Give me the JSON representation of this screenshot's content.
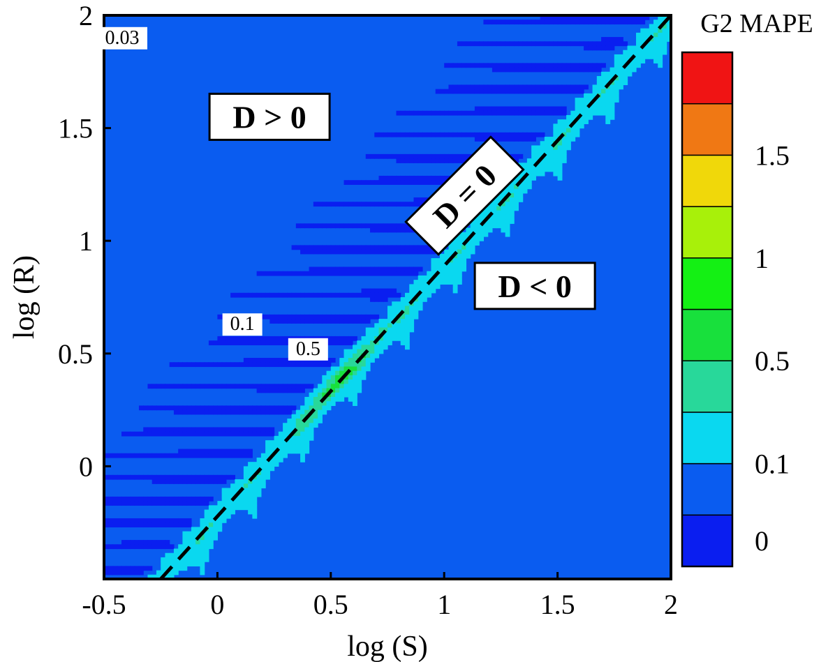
{
  "chart_data": {
    "type": "heatmap",
    "subtype": "filled-contour",
    "xlabel": "log (S)",
    "ylabel": "log (R)",
    "xlim": [
      -0.5,
      2
    ],
    "ylim": [
      -0.5,
      2
    ],
    "x_ticks": [
      {
        "value": -0.5,
        "label": "-0.5"
      },
      {
        "value": 0,
        "label": "0"
      },
      {
        "value": 0.5,
        "label": "0.5"
      },
      {
        "value": 1,
        "label": "1"
      },
      {
        "value": 1.5,
        "label": "1.5"
      },
      {
        "value": 2,
        "label": "2"
      }
    ],
    "y_ticks": [
      {
        "value": 0,
        "label": "0"
      },
      {
        "value": 0.5,
        "label": "0.5"
      },
      {
        "value": 1,
        "label": "1"
      },
      {
        "value": 1.5,
        "label": "1.5"
      },
      {
        "value": 2,
        "label": "2"
      }
    ],
    "colorbar": {
      "title": "G2 MAPE",
      "levels": [
        0,
        0.03,
        0.1,
        0.3,
        0.5,
        0.75,
        1,
        1.25,
        1.5,
        1.65
      ],
      "colors": [
        "#0a1ef0",
        "#0a5cf0",
        "#0ad8f0",
        "#28d89a",
        "#18e03c",
        "#14f014",
        "#a8f00a",
        "#f0d80a",
        "#f07814",
        "#f01414"
      ],
      "tick_labels": [
        {
          "value": 0,
          "label": "0"
        },
        {
          "value": 0.1,
          "label": "0.1"
        },
        {
          "value": 0.5,
          "label": "0.5"
        },
        {
          "value": 1,
          "label": "1"
        },
        {
          "value": 1.5,
          "label": "1.5"
        }
      ]
    },
    "divider_line": {
      "style": "dashed",
      "points": [
        [
          -0.25,
          -0.5
        ],
        [
          2,
          2
        ]
      ]
    },
    "region_labels": [
      {
        "text": "D > 0",
        "x": 0.23,
        "y": 1.55,
        "rotation": 0
      },
      {
        "text": "D = 0",
        "x": 1.09,
        "y": 1.2,
        "rotation": -45
      },
      {
        "text": "D < 0",
        "x": 1.4,
        "y": 0.8,
        "rotation": 0
      }
    ],
    "contour_labels": [
      {
        "text": "0.03",
        "x": -0.42,
        "y": 1.88
      },
      {
        "text": "0.1",
        "x": 0.11,
        "y": 0.61
      },
      {
        "text": "0.5",
        "x": 0.4,
        "y": 0.5
      }
    ],
    "grid": false,
    "legend": "right"
  }
}
